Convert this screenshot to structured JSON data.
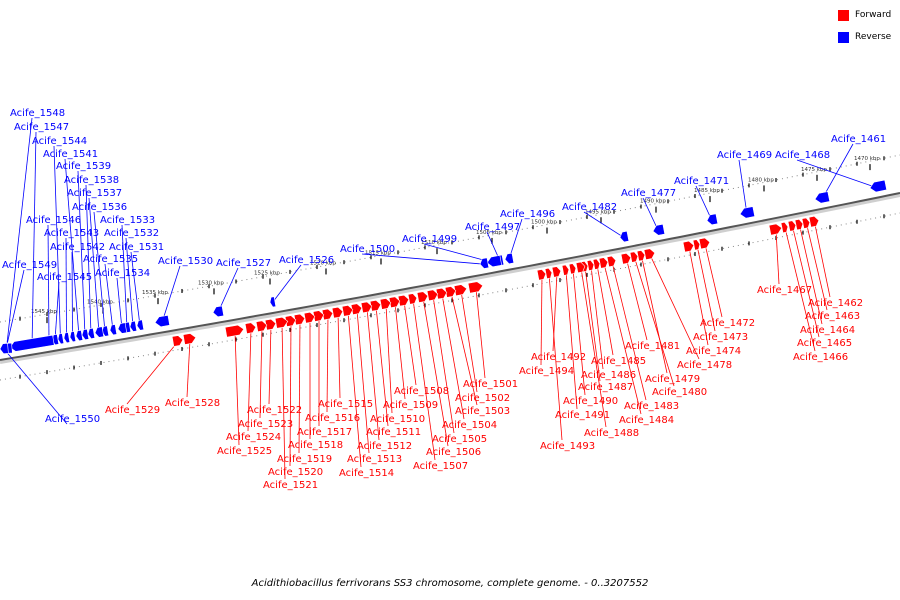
{
  "legend": {
    "forward_label": "Forward",
    "reverse_label": "Reverse",
    "forward_color": "#ff0000",
    "reverse_color": "#0000ff"
  },
  "caption": "Acidithiobacillus ferrivorans SS3 chromosome, complete genome. - 0..3207552",
  "ruler_labels": [
    "1470 kbp",
    "1475 kbp",
    "1480 kbp",
    "1485 kbp",
    "1490 kbp",
    "1495 kbp",
    "1500 kbp",
    "1505 kbp",
    "1510 kbp",
    "1515 kbp",
    "1520 kbp",
    "1525 kbp",
    "1530 kbp",
    "1535 kbp",
    "1540 kbp",
    "1545 kbp"
  ],
  "reverse_genes": [
    "Acife_1461",
    "Acife_1468",
    "Acife_1469",
    "Acife_1471",
    "Acife_1477",
    "Acife_1482",
    "Acife_1496",
    "Acife_1497",
    "Acife_1499",
    "Acife_1500",
    "Acife_1526",
    "Acife_1527",
    "Acife_1530",
    "Acife_1531",
    "Acife_1532",
    "Acife_1533",
    "Acife_1534",
    "Acife_1535",
    "Acife_1536",
    "Acife_1537",
    "Acife_1538",
    "Acife_1539",
    "Acife_1541",
    "Acife_1542",
    "Acife_1543",
    "Acife_1544",
    "Acife_1545",
    "Acife_1546",
    "Acife_1547",
    "Acife_1548",
    "Acife_1549",
    "Acife_1550"
  ],
  "forward_genes": [
    "Acife_1462",
    "Acife_1463",
    "Acife_1464",
    "Acife_1465",
    "Acife_1466",
    "Acife_1467",
    "Acife_1472",
    "Acife_1473",
    "Acife_1474",
    "Acife_1478",
    "Acife_1479",
    "Acife_1480",
    "Acife_1481",
    "Acife_1483",
    "Acife_1484",
    "Acife_1485",
    "Acife_1486",
    "Acife_1487",
    "Acife_1488",
    "Acife_1490",
    "Acife_1491",
    "Acife_1492",
    "Acife_1493",
    "Acife_1494",
    "Acife_1501",
    "Acife_1502",
    "Acife_1503",
    "Acife_1504",
    "Acife_1505",
    "Acife_1506",
    "Acife_1507",
    "Acife_1508",
    "Acife_1509",
    "Acife_1510",
    "Acife_1511",
    "Acife_1512",
    "Acife_1513",
    "Acife_1514",
    "Acife_1515",
    "Acife_1516",
    "Acife_1517",
    "Acife_1518",
    "Acife_1519",
    "Acife_1520",
    "Acife_1521",
    "Acife_1522",
    "Acife_1523",
    "Acife_1524",
    "Acife_1525",
    "Acife_1528",
    "Acife_1529"
  ]
}
